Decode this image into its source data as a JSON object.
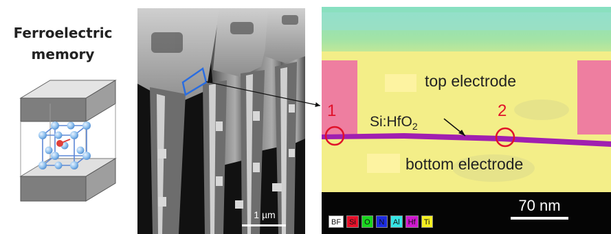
{
  "schematic": {
    "title_line1": "Ferroelectric",
    "title_line2": "memory"
  },
  "sem": {
    "scale_label": "1 µm"
  },
  "edx": {
    "top_electrode": "top electrode",
    "bottom_electrode": "bottom electrode",
    "layer_label_main": "Si:HfO",
    "layer_label_sub": "2",
    "marker_1": "1",
    "marker_2": "2",
    "scale_label": "70 nm",
    "legend": [
      {
        "label": "BF",
        "color": "#ffffff"
      },
      {
        "label": "Si",
        "color": "#e8102a"
      },
      {
        "label": "O",
        "color": "#19d61e"
      },
      {
        "label": "N",
        "color": "#1c2ce0"
      },
      {
        "label": "Al",
        "color": "#35e6e6"
      },
      {
        "label": "Hf",
        "color": "#d018d0"
      },
      {
        "label": "Ti",
        "color": "#f5f020"
      }
    ]
  },
  "colors": {
    "marker": "#e0122a",
    "hfo2_layer": "#a01fb0",
    "electrode_yellow": "#f3ee88",
    "si_pink": "#ee7ea0"
  }
}
